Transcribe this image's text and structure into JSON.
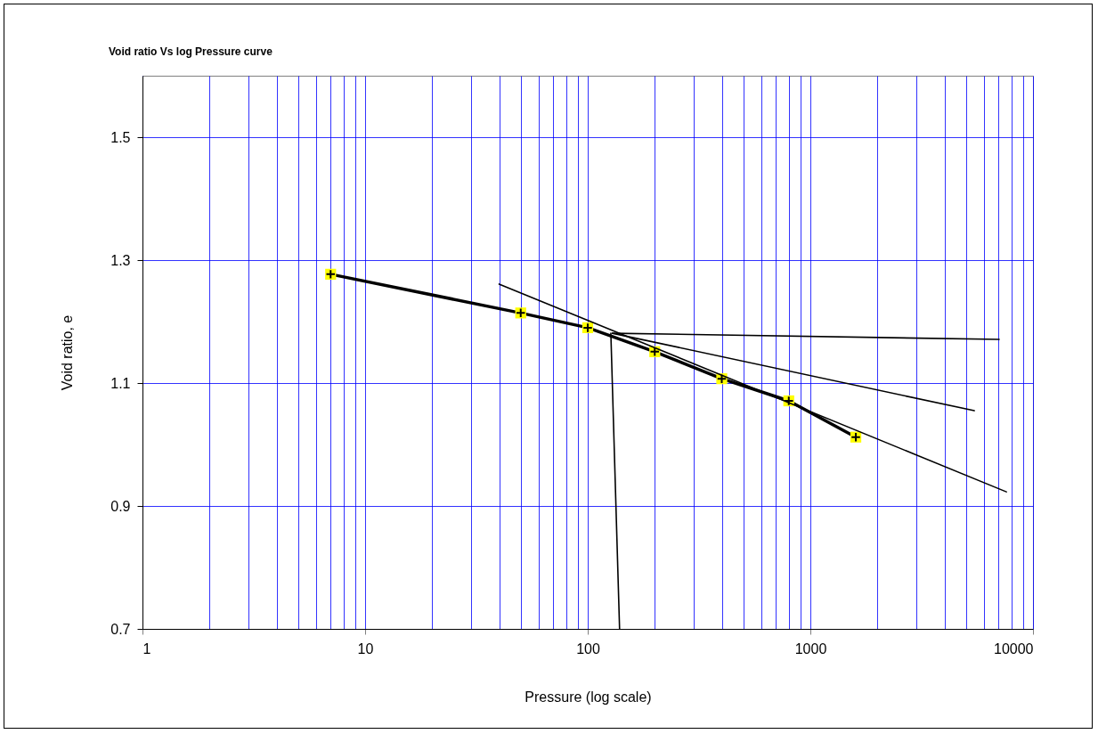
{
  "chart_data": {
    "type": "line",
    "title": "Void ratio Vs log Pressure curve",
    "xlabel": "Pressure (log scale)",
    "ylabel": "Void ratio, e",
    "log": "x",
    "xlim": [
      1,
      10000
    ],
    "xticks": [
      1,
      10,
      100,
      1000,
      10000
    ],
    "ylim": [
      0.7,
      1.6
    ],
    "yticks": [
      0.7,
      0.9,
      1.1,
      1.3,
      1.5
    ],
    "grid": true,
    "series": [
      {
        "color": "#000000",
        "marker": "cross",
        "x": [
          7,
          50,
          100,
          200,
          400,
          800,
          1600
        ],
        "values": [
          1.277,
          1.214,
          1.19,
          1.151,
          1.107,
          1.071,
          1.012
        ]
      },
      {
        "color": "#000000",
        "marker": "none",
        "x": [
          40,
          7590
        ],
        "values": [
          1.261,
          0.923
        ]
      },
      {
        "color": "#000000",
        "marker": "none",
        "x": [
          129,
          7050
        ],
        "values": [
          1.181,
          1.171
        ]
      },
      {
        "color": "#000000",
        "marker": "none",
        "x": [
          129,
          5450
        ],
        "values": [
          1.181,
          1.055
        ]
      },
      {
        "color": "#000000",
        "marker": "none",
        "x": [
          127,
          139
        ],
        "values": [
          1.181,
          0.7
        ]
      }
    ]
  }
}
